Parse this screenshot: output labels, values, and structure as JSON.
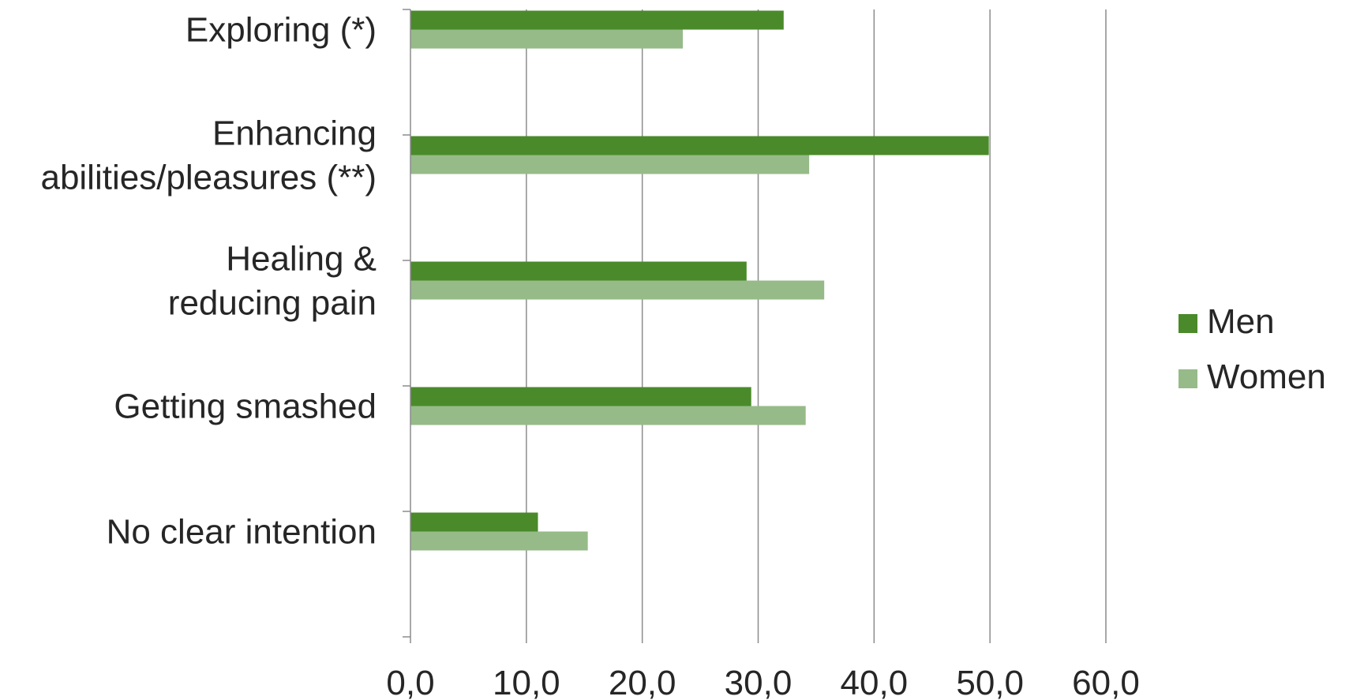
{
  "chart_data": {
    "type": "bar",
    "orientation": "horizontal",
    "categories": [
      [
        "Exploring (*)"
      ],
      [
        "Enhancing",
        "abilities/pleasures (**)"
      ],
      [
        "Healing &",
        "reducing pain"
      ],
      [
        "Getting smashed"
      ],
      [
        "No clear intention"
      ]
    ],
    "series": [
      {
        "name": "Men",
        "color": "#4a8a2a",
        "values": [
          32.2,
          49.9,
          29.0,
          29.4,
          11.0
        ]
      },
      {
        "name": "Women",
        "color": "#96bb88",
        "values": [
          23.5,
          34.4,
          35.7,
          34.1,
          15.3
        ]
      }
    ],
    "xlim": [
      0,
      60
    ],
    "xticks": [
      0,
      10,
      20,
      30,
      40,
      50,
      60
    ],
    "xtick_labels": [
      "0,0",
      "10,0",
      "20,0",
      "30,0",
      "40,0",
      "50,0",
      "60,0"
    ],
    "grid": "vertical",
    "legend_position": "right",
    "title": "",
    "xlabel": "",
    "ylabel": ""
  }
}
